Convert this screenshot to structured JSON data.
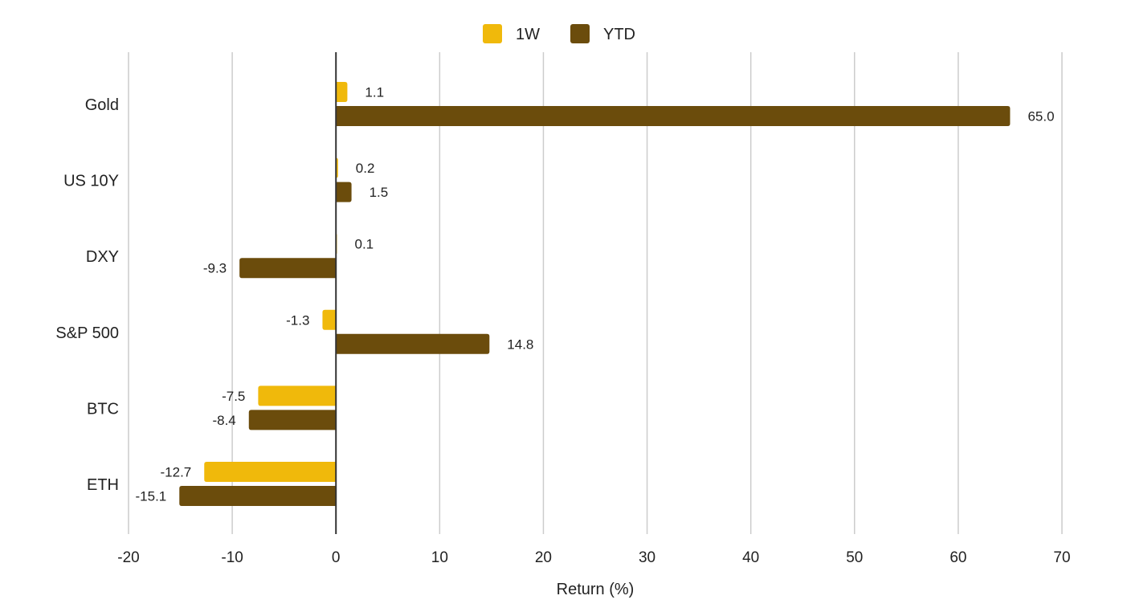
{
  "chart_data": {
    "type": "bar",
    "orientation": "horizontal",
    "title": "",
    "xlabel": "Return (%)",
    "ylabel": "",
    "xlim": [
      -20,
      70
    ],
    "xticks": [
      -20,
      -10,
      0,
      10,
      20,
      30,
      40,
      50,
      60,
      70
    ],
    "grid": true,
    "legend_position": "top-center",
    "categories": [
      "Gold",
      "US 10Y",
      "DXY",
      "S&P 500",
      "BTC",
      "ETH"
    ],
    "series": [
      {
        "name": "1W",
        "color": "#F0B90B",
        "values": [
          1.1,
          0.2,
          0.1,
          -1.3,
          -7.5,
          -12.7
        ]
      },
      {
        "name": "YTD",
        "color": "#6B4C0C",
        "values": [
          65.0,
          1.5,
          -9.3,
          14.8,
          -8.4,
          -15.1
        ]
      }
    ]
  }
}
